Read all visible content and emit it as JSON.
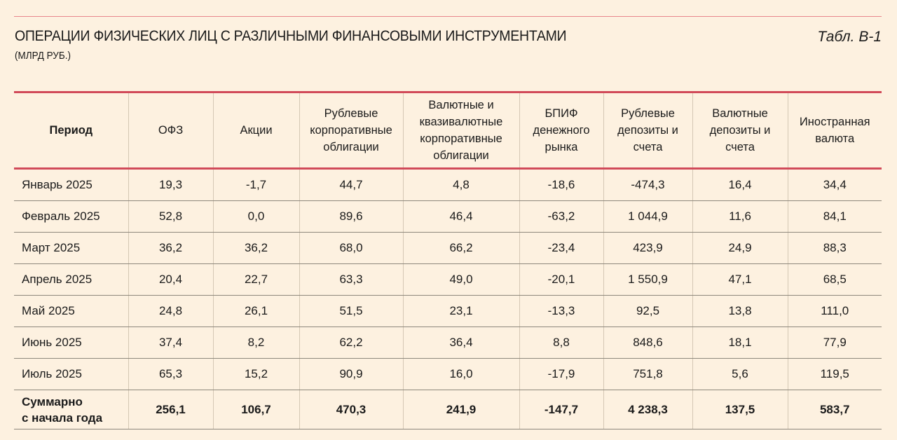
{
  "header": {
    "title": "ОПЕРАЦИИ ФИЗИЧЕСКИХ ЛИЦ С РАЗЛИЧНЫМИ ФИНАНСОВЫМИ ИНСТРУМЕНТАМИ",
    "subtitle": "(МЛРД РУБ.)",
    "table_ref": "Табл. В-1"
  },
  "colors": {
    "accent": "#d14a59",
    "background": "#fdf1e0"
  },
  "table": {
    "columns": [
      "Период",
      "ОФЗ",
      "Акции",
      "Рублевые корпоративные облигации",
      "Валютные и квазивалютные корпоративные облигации",
      "БПИФ денежного рынка",
      "Рублевые депозиты и счета",
      "Валютные депозиты и счета",
      "Иностранная валюта"
    ],
    "rows": [
      [
        "Январь 2025",
        "19,3",
        "-1,7",
        "44,7",
        "4,8",
        "-18,6",
        "-474,3",
        "16,4",
        "34,4"
      ],
      [
        "Февраль 2025",
        "52,8",
        "0,0",
        "89,6",
        "46,4",
        "-63,2",
        "1 044,9",
        "11,6",
        "84,1"
      ],
      [
        "Март 2025",
        "36,2",
        "36,2",
        "68,0",
        "66,2",
        "-23,4",
        "423,9",
        "24,9",
        "88,3"
      ],
      [
        "Апрель 2025",
        "20,4",
        "22,7",
        "63,3",
        "49,0",
        "-20,1",
        "1 550,9",
        "47,1",
        "68,5"
      ],
      [
        "Май 2025",
        "24,8",
        "26,1",
        "51,5",
        "23,1",
        "-13,3",
        "92,5",
        "13,8",
        "111,0"
      ],
      [
        "Июнь 2025",
        "37,4",
        "8,2",
        "62,2",
        "36,4",
        "8,8",
        "848,6",
        "18,1",
        "77,9"
      ],
      [
        "Июль 2025",
        "65,3",
        "15,2",
        "90,9",
        "16,0",
        "-17,9",
        "751,8",
        "5,6",
        "119,5"
      ]
    ],
    "total": {
      "label_line1": "Суммарно",
      "label_line2": "с начала года",
      "values": [
        "256,1",
        "106,7",
        "470,3",
        "241,9",
        "-147,7",
        "4 238,3",
        "137,5",
        "583,7"
      ]
    }
  }
}
